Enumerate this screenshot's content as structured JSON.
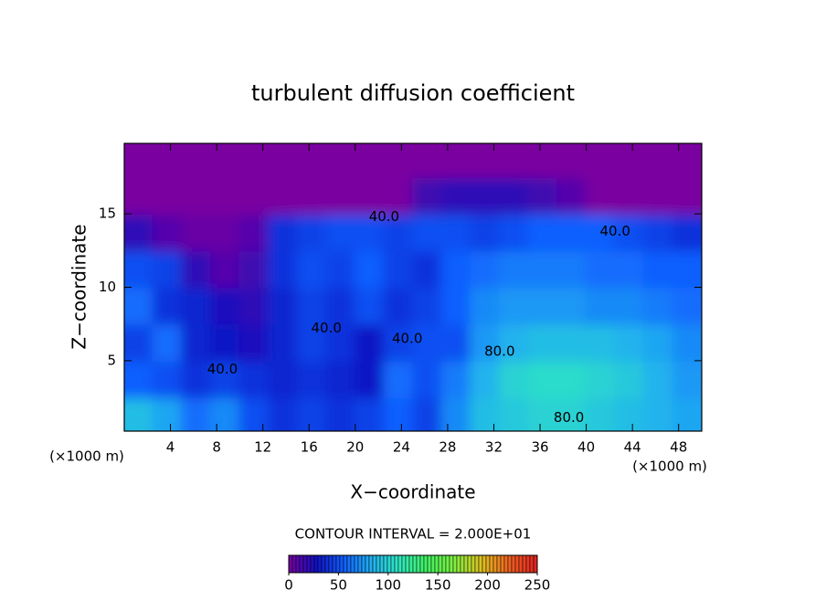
{
  "chart_data": {
    "type": "heatmap",
    "title": "turbulent diffusion coefficient",
    "x_label": "X−coordinate",
    "y_label": "Z−coordinate",
    "x_unit_left": "(×1000 m)",
    "x_unit_right": "(×1000 m)",
    "contour_note": "CONTOUR INTERVAL = 2.000E+01",
    "xlim": [
      0,
      50
    ],
    "ylim": [
      0.2,
      19.8
    ],
    "xticks": [
      4,
      8,
      12,
      16,
      20,
      24,
      28,
      32,
      36,
      40,
      44,
      48
    ],
    "yticks": [
      5,
      10,
      15
    ],
    "x": [
      1.25,
      3.75,
      6.25,
      8.75,
      11.25,
      13.75,
      16.25,
      18.75,
      21.25,
      23.75,
      26.25,
      28.75,
      31.25,
      33.75,
      36.25,
      38.75,
      41.25,
      43.75,
      46.25,
      48.75
    ],
    "y": [
      1.25,
      3.75,
      6.25,
      8.75,
      11.25,
      13.75,
      16.25,
      18.75
    ],
    "z": [
      [
        90,
        80,
        60,
        70,
        50,
        40,
        45,
        40,
        45,
        55,
        45,
        70,
        90,
        95,
        100,
        100,
        95,
        90,
        85,
        80
      ],
      [
        55,
        50,
        40,
        45,
        40,
        35,
        40,
        35,
        30,
        60,
        50,
        65,
        85,
        100,
        105,
        105,
        100,
        95,
        85,
        75
      ],
      [
        45,
        60,
        35,
        30,
        25,
        35,
        45,
        40,
        30,
        45,
        50,
        50,
        75,
        85,
        90,
        90,
        90,
        85,
        80,
        70
      ],
      [
        60,
        40,
        35,
        25,
        20,
        35,
        45,
        40,
        50,
        40,
        45,
        55,
        70,
        75,
        75,
        75,
        70,
        70,
        65,
        60
      ],
      [
        50,
        45,
        20,
        10,
        15,
        40,
        50,
        45,
        55,
        45,
        40,
        55,
        60,
        65,
        65,
        65,
        60,
        60,
        55,
        55
      ],
      [
        20,
        10,
        5,
        5,
        10,
        40,
        45,
        50,
        50,
        45,
        50,
        50,
        45,
        50,
        55,
        55,
        55,
        50,
        45,
        40
      ],
      [
        0,
        0,
        0,
        0,
        0,
        0,
        0,
        0,
        0,
        0,
        15,
        20,
        20,
        20,
        15,
        10,
        0,
        0,
        0,
        0
      ],
      [
        0,
        0,
        0,
        0,
        0,
        0,
        0,
        0,
        0,
        0,
        0,
        0,
        0,
        0,
        0,
        0,
        0,
        0,
        0,
        0
      ]
    ],
    "contour_labels": [
      {
        "text": "40.0",
        "x": 22.5,
        "y": 14.8
      },
      {
        "text": "40.0",
        "x": 42.5,
        "y": 13.8
      },
      {
        "text": "40.0",
        "x": 17.5,
        "y": 7.2
      },
      {
        "text": "40.0",
        "x": 24.5,
        "y": 6.5
      },
      {
        "text": "40.0",
        "x": 8.5,
        "y": 4.4
      },
      {
        "text": "80.0",
        "x": 32.5,
        "y": 5.6
      },
      {
        "text": "80.0",
        "x": 38.5,
        "y": 1.1
      }
    ],
    "clim": [
      0,
      250
    ],
    "colorbar_ticks": [
      0,
      50,
      100,
      150,
      200,
      250
    ],
    "colormap": [
      "#7a00a0",
      "#1010c0",
      "#1060ff",
      "#20b0f0",
      "#30e8c0",
      "#40f060",
      "#80f040",
      "#e0c020",
      "#f06020",
      "#e02020"
    ]
  }
}
